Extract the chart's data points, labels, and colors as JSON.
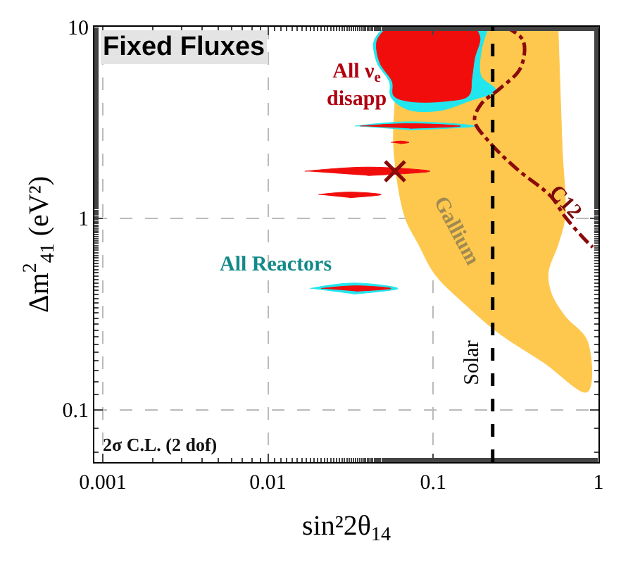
{
  "chart_data": {
    "type": "area",
    "title": "Fixed Fluxes",
    "xlabel": "sin²2θ$_{14}$",
    "ylabel": "Δm$^{2}$$_{41}$ (eV²)",
    "log": "xy",
    "xlim": [
      0.00089,
      1
    ],
    "ylim": [
      0.0533,
      10
    ],
    "xticks": [
      0.001,
      0.01,
      0.1,
      1
    ],
    "yticks": [
      0.1,
      1,
      10
    ],
    "grid": true,
    "series": [
      {
        "color": "#fec84e",
        "x": [
          0.0555,
          0.0587,
          0.0577,
          0.0673,
          0.0817,
          0.103,
          0.161,
          0.247,
          0.469,
          0.855,
          0.855,
          0.627,
          0.516,
          0.497,
          0.569,
          0.627,
          0.603,
          0.569
        ],
        "values": [
          10,
          4.52,
          2.33,
          1.02,
          0.73,
          0.507,
          0.347,
          0.253,
          0.176,
          0.124,
          0.229,
          0.308,
          0.409,
          0.524,
          0.73,
          1.02,
          2.33,
          10
        ]
      },
      {
        "type": "area",
        "color": "#22e6ee",
        "x": [
          0.0513,
          0.0439,
          0.0457,
          0.0544,
          0.0555,
          0.07,
          0.109,
          0.164,
          0.238,
          0.195,
          0.195,
          0.216
        ],
        "values": [
          10,
          8.47,
          6.5,
          5.15,
          4.3,
          3.7,
          3.65,
          4.09,
          4.67,
          5.51,
          7.43,
          10
        ]
      },
      {
        "type": "area",
        "color": "#f20d0d",
        "x": [
          0.0533,
          0.0457,
          0.0475,
          0.0566,
          0.0577,
          0.07,
          0.12,
          0.164,
          0.171,
          0.178,
          0.192,
          0.178
        ],
        "values": [
          10,
          8.47,
          6.5,
          5.15,
          4.37,
          4.09,
          4.09,
          4.37,
          5.33,
          6.84,
          8.75,
          10
        ]
      },
      {
        "type": "area",
        "color": "#22e6ee",
        "x": [
          0.0335,
          0.07,
          0.178,
          0.07
        ],
        "values": [
          3.03,
          3.19,
          3.03,
          2.89
        ]
      },
      {
        "type": "area",
        "color": "#f20d0d",
        "x": [
          0.0362,
          0.072,
          0.146,
          0.072
        ],
        "values": [
          3.03,
          3.12,
          3.03,
          2.95
        ]
      },
      {
        "type": "area",
        "color": "#f20d0d",
        "x": [
          0.0555,
          0.063,
          0.0713,
          0.063
        ],
        "values": [
          2.49,
          2.53,
          2.49,
          2.45
        ]
      },
      {
        "type": "area",
        "color": "#f20d0d",
        "x": [
          0.0167,
          0.04,
          0.0955,
          0.04
        ],
        "values": [
          1.76,
          1.85,
          1.76,
          1.67
        ]
      },
      {
        "type": "area",
        "color": "#f20d0d",
        "x": [
          0.0202,
          0.031,
          0.0484,
          0.031
        ],
        "values": [
          1.33,
          1.37,
          1.33,
          1.28
        ]
      },
      {
        "type": "area",
        "color": "#22e6ee",
        "x": [
          0.018,
          0.033,
          0.0611,
          0.033
        ],
        "values": [
          0.43,
          0.459,
          0.43,
          0.402
        ]
      },
      {
        "type": "area",
        "color": "#f20d0d",
        "x": [
          0.021,
          0.034,
          0.0555,
          0.034
        ],
        "values": [
          0.43,
          0.444,
          0.43,
          0.416
        ]
      },
      {
        "type": "line",
        "color": "#8b0a0a",
        "line_style": "dotted",
        "x": [
          0.272,
          0.35,
          0.337,
          0.252,
          0.195,
          0.178,
          0.216,
          0.318,
          0.516,
          0.627,
          0.806,
          0.923
        ],
        "values": [
          10,
          8.47,
          6.08,
          4.74,
          3.95,
          3.24,
          2.53,
          1.82,
          1.3,
          1.02,
          0.793,
          0.706
        ]
      },
      {
        "type": "scatter",
        "color": "#8b0a0a",
        "marker": "cross",
        "x": [
          0.0587
        ],
        "values": [
          1.76
        ]
      }
    ],
    "ref_lines": [
      {
        "axis": "x",
        "value": 0.229,
        "label": "Solar",
        "color": "#000000",
        "line_style": "dashed"
      }
    ],
    "annotations": [
      "All ν$_{e}$\ndisapp",
      "All Reactors",
      "Gallium",
      "C12",
      "2σ C.L. (2 dof)"
    ]
  }
}
